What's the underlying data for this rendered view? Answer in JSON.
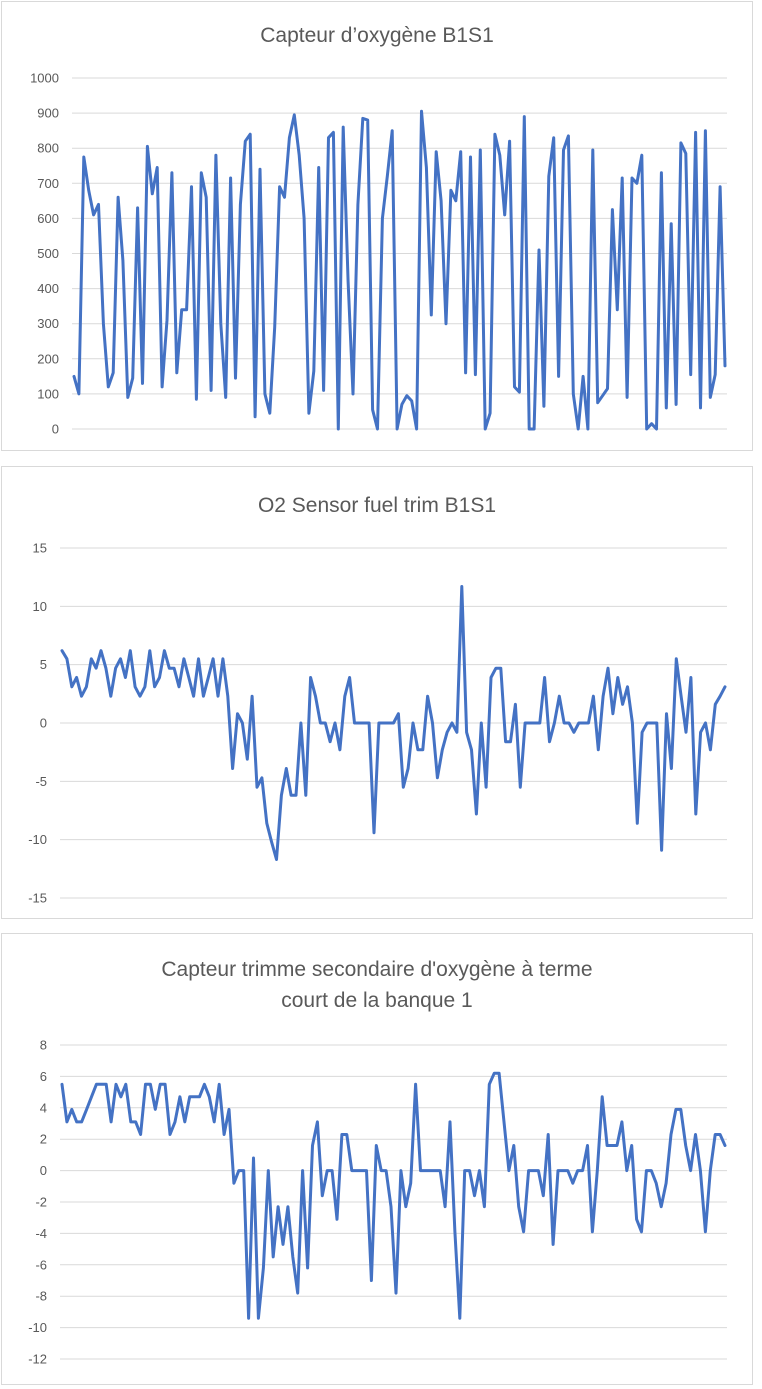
{
  "theme": {
    "series_color": "#4472c4",
    "text_color": "#595959",
    "grid_color": "#d9d9d9",
    "border_color": "#d9d9d9"
  },
  "chart_data": [
    {
      "type": "line",
      "title": "Capteur d’oxygène B1S1",
      "title_lines": [
        "Capteur d’oxygène B1S1"
      ],
      "xlabel": "",
      "ylabel": "",
      "ylim": [
        0,
        1000
      ],
      "yticks": [
        0,
        100,
        200,
        300,
        400,
        500,
        600,
        700,
        800,
        900,
        1000
      ],
      "grid": true,
      "legend": "none",
      "series": [
        {
          "name": "Capteur d’oxygène B1S1",
          "values": [
            150,
            100,
            775,
            680,
            610,
            640,
            300,
            120,
            160,
            660,
            480,
            90,
            145,
            630,
            130,
            805,
            670,
            745,
            120,
            310,
            730,
            160,
            340,
            340,
            690,
            85,
            730,
            660,
            110,
            780,
            300,
            90,
            715,
            145,
            640,
            820,
            840,
            35,
            740,
            100,
            45,
            290,
            690,
            660,
            830,
            895,
            780,
            600,
            45,
            165,
            745,
            110,
            830,
            845,
            0,
            860,
            420,
            100,
            640,
            885,
            880,
            55,
            0,
            600,
            720,
            850,
            0,
            70,
            95,
            80,
            0,
            905,
            745,
            325,
            790,
            650,
            300,
            680,
            650,
            790,
            160,
            775,
            155,
            795,
            0,
            45,
            840,
            780,
            610,
            820,
            120,
            105,
            890,
            0,
            0,
            510,
            65,
            720,
            830,
            150,
            795,
            835,
            100,
            0,
            150,
            0,
            795,
            75,
            95,
            115,
            625,
            340,
            715,
            90,
            715,
            700,
            780,
            0,
            15,
            0,
            730,
            60,
            585,
            70,
            815,
            785,
            155,
            845,
            60,
            850,
            90,
            155,
            690,
            180
          ]
        }
      ]
    },
    {
      "type": "line",
      "title": "O2 Sensor fuel trim B1S1",
      "title_lines": [
        "O2 Sensor fuel trim B1S1"
      ],
      "xlabel": "",
      "ylabel": "",
      "ylim": [
        -15,
        15
      ],
      "yticks": [
        -15,
        -10,
        -5,
        0,
        5,
        10,
        15
      ],
      "grid": true,
      "legend": "none",
      "series": [
        {
          "name": "O2 Sensor fuel trim B1S1",
          "values": [
            6.2,
            5.5,
            3.1,
            3.9,
            2.3,
            3.1,
            5.5,
            4.7,
            6.2,
            4.7,
            2.3,
            4.7,
            5.5,
            3.9,
            6.2,
            3.1,
            2.3,
            3.1,
            6.2,
            3.1,
            3.9,
            6.2,
            4.7,
            4.7,
            3.1,
            5.5,
            3.9,
            2.3,
            5.5,
            2.3,
            3.9,
            5.5,
            2.3,
            5.5,
            2.3,
            -3.9,
            0.8,
            0,
            -3.1,
            2.3,
            -5.5,
            -4.7,
            -8.6,
            -10.2,
            -11.7,
            -6.2,
            -3.9,
            -6.2,
            -6.2,
            0,
            -6.2,
            3.9,
            2.3,
            0,
            0,
            -1.6,
            0,
            -2.3,
            2.3,
            3.9,
            0,
            0,
            0,
            0,
            -9.4,
            0,
            0,
            0,
            0,
            0.8,
            -5.5,
            -3.9,
            0,
            -2.3,
            -2.3,
            2.3,
            0,
            -4.7,
            -2.3,
            -0.8,
            0,
            -0.8,
            11.7,
            -0.8,
            -2.3,
            -7.8,
            0,
            -5.5,
            3.9,
            4.7,
            4.7,
            -1.6,
            -1.6,
            1.6,
            -5.5,
            0,
            0,
            0,
            0,
            3.9,
            -1.6,
            0,
            2.3,
            0,
            0,
            -0.8,
            0,
            0,
            0,
            2.3,
            -2.3,
            2.3,
            4.7,
            0.8,
            3.9,
            1.6,
            3.1,
            0,
            -8.6,
            -0.8,
            0,
            0,
            0,
            -10.9,
            0.8,
            -3.9,
            5.5,
            2.3,
            -0.8,
            3.9,
            -7.8,
            -0.8,
            0,
            -2.3,
            1.6,
            2.3,
            3.1
          ]
        }
      ]
    },
    {
      "type": "line",
      "title": "Capteur trimme secondaire d'oxygène à terme court de la banque 1",
      "title_lines": [
        "Capteur trimme secondaire d'oxygène à terme",
        "court de la banque 1"
      ],
      "xlabel": "",
      "ylabel": "",
      "ylim": [
        -12,
        8
      ],
      "yticks": [
        -12,
        -10,
        -8,
        -6,
        -4,
        -2,
        0,
        2,
        4,
        6,
        8
      ],
      "grid": true,
      "legend": "none",
      "series": [
        {
          "name": "Capteur trimme secondaire d'oxygène à terme court de la banque 1",
          "values": [
            5.5,
            3.1,
            3.9,
            3.1,
            3.1,
            3.9,
            4.7,
            5.5,
            5.5,
            5.5,
            3.1,
            5.5,
            4.7,
            5.5,
            3.1,
            3.1,
            2.3,
            5.5,
            5.5,
            3.9,
            5.5,
            5.5,
            2.3,
            3.1,
            4.7,
            3.1,
            4.7,
            4.7,
            4.7,
            5.5,
            4.7,
            3.1,
            5.5,
            2.3,
            3.9,
            -0.8,
            0,
            0,
            -9.4,
            0.8,
            -9.4,
            -6.2,
            0,
            -5.5,
            -2.3,
            -4.7,
            -2.3,
            -5.5,
            -7.8,
            0,
            -6.2,
            1.6,
            3.1,
            -1.6,
            0,
            0,
            -3.1,
            2.3,
            2.3,
            0,
            0,
            0,
            0,
            -7.0,
            1.6,
            0,
            0,
            -2.3,
            -7.8,
            0,
            -2.3,
            -0.8,
            5.5,
            0,
            0,
            0,
            0,
            0,
            -2.3,
            3.1,
            -3.9,
            -9.4,
            0,
            0,
            -1.6,
            0,
            -2.3,
            5.5,
            6.2,
            6.2,
            3.1,
            0,
            1.6,
            -2.3,
            -3.9,
            0,
            0,
            0,
            -1.6,
            2.3,
            -4.7,
            0,
            0,
            0,
            -0.8,
            0,
            0,
            1.6,
            -3.9,
            0,
            4.7,
            1.6,
            1.6,
            1.6,
            3.1,
            0,
            1.6,
            -3.1,
            -3.9,
            0,
            0,
            -0.8,
            -2.3,
            -0.8,
            2.3,
            3.9,
            3.9,
            1.6,
            0,
            2.3,
            0,
            -3.9,
            0,
            2.3,
            2.3,
            1.6
          ]
        }
      ]
    }
  ]
}
